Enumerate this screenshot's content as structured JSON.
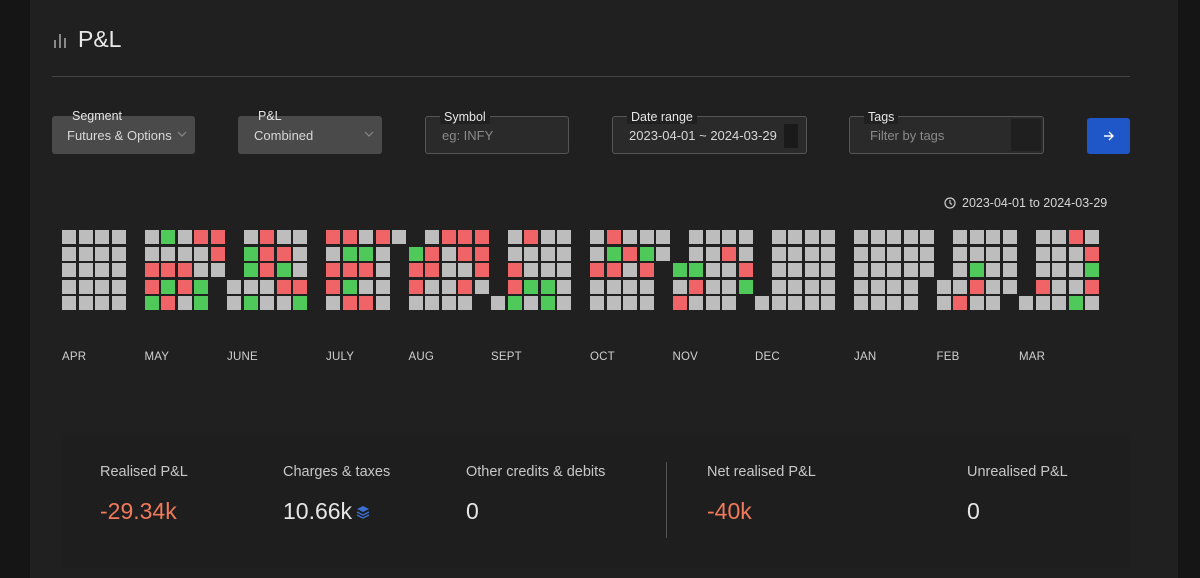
{
  "header": {
    "title": "P&L"
  },
  "filters": {
    "segment": {
      "label": "Segment",
      "value": "Futures & Options"
    },
    "pnl": {
      "label": "P&L",
      "value": "Combined"
    },
    "symbol": {
      "label": "Symbol",
      "placeholder": "eg: INFY"
    },
    "date_range": {
      "label": "Date range",
      "value": "2023-04-01 ~ 2024-03-29"
    },
    "tags": {
      "label": "Tags",
      "placeholder": "Filter by tags"
    }
  },
  "range_note": "2023-04-01 to 2024-03-29",
  "heatmap": {
    "months": [
      "APR",
      "MAY",
      "JUNE",
      "JULY",
      "AUG",
      "SEPT",
      "OCT",
      "NOV",
      "DEC",
      "JAN",
      "FEB",
      "MAR"
    ],
    "colors": {
      "none": "#bdbdbd",
      "profit": "#4fc95a",
      "loss": "#f06366"
    }
  },
  "stats": {
    "realised": {
      "label": "Realised P&L",
      "value": "-29.34k"
    },
    "charges": {
      "label": "Charges & taxes",
      "value": "10.66k"
    },
    "other": {
      "label": "Other credits & debits",
      "value": "0"
    },
    "net": {
      "label": "Net realised P&L",
      "value": "-40k"
    },
    "unrealised": {
      "label": "Unrealised P&L",
      "value": "0"
    }
  }
}
